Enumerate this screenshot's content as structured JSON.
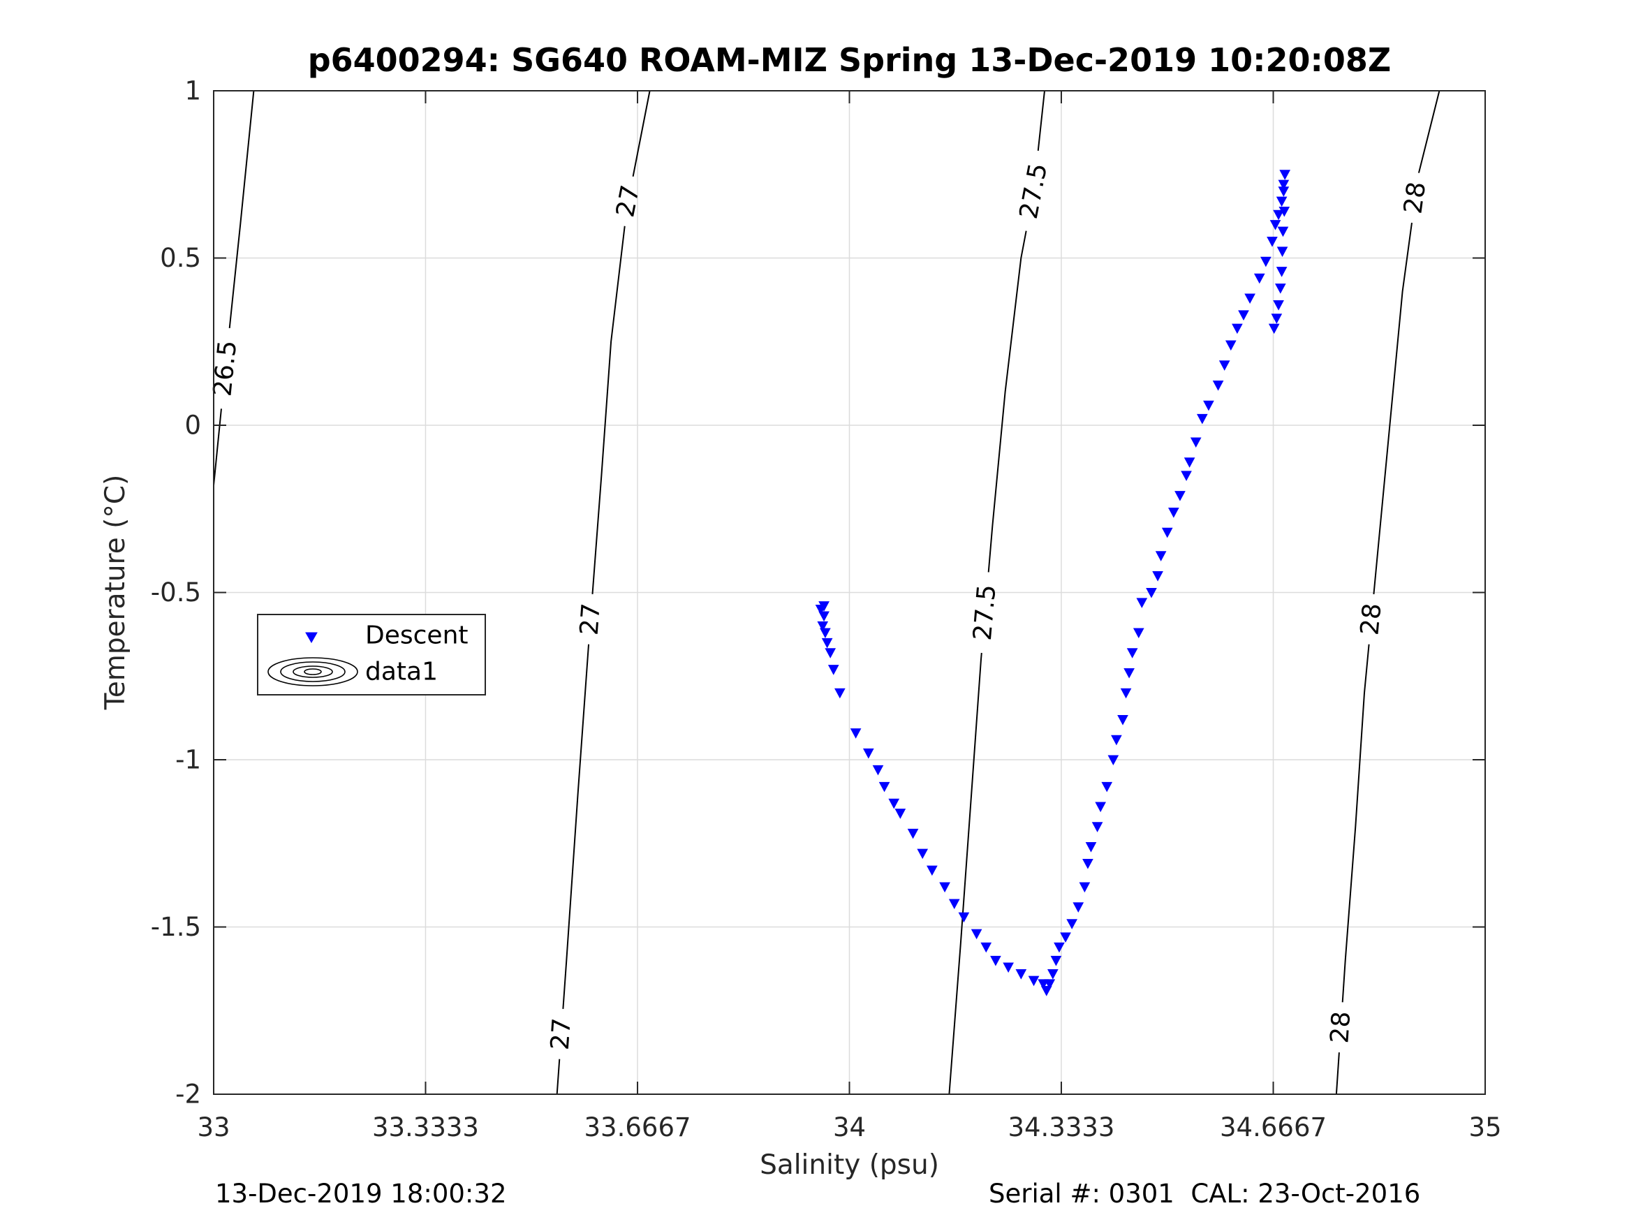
{
  "chart_data": {
    "type": "scatter",
    "title": "p6400294: SG640 ROAM-MIZ Spring 13-Dec-2019 10:20:08Z",
    "xlabel": "Salinity (psu)",
    "ylabel": "Temperature (°C)",
    "xlim": [
      33,
      35
    ],
    "ylim": [
      -2,
      1
    ],
    "x_ticks": [
      33,
      33.3333,
      33.6667,
      34,
      34.3333,
      34.6667,
      35
    ],
    "x_tick_labels": [
      "33",
      "33.3333",
      "33.6667",
      "34",
      "34.3333",
      "34.6667",
      "35"
    ],
    "y_ticks": [
      -2,
      -1.5,
      -1,
      -0.5,
      0,
      0.5,
      1
    ],
    "y_tick_labels": [
      "-2",
      "-1.5",
      "-1",
      "-0.5",
      "0",
      "0.5",
      "1"
    ],
    "grid": true,
    "legend_placement": "middle-left",
    "legend": [
      {
        "label": "Descent",
        "marker": "triangle-down",
        "color": "#0000ff"
      },
      {
        "label": "data1",
        "marker": "contour",
        "color": "#000000"
      }
    ],
    "series": [
      {
        "name": "Descent",
        "marker": "triangle-down",
        "color": "#0000ff",
        "points": [
          [
            33.96,
            -0.54
          ],
          [
            33.955,
            -0.55
          ],
          [
            33.96,
            -0.57
          ],
          [
            33.958,
            -0.6
          ],
          [
            33.962,
            -0.62
          ],
          [
            33.965,
            -0.65
          ],
          [
            33.97,
            -0.68
          ],
          [
            33.975,
            -0.73
          ],
          [
            33.985,
            -0.8
          ],
          [
            34.01,
            -0.92
          ],
          [
            34.03,
            -0.98
          ],
          [
            34.045,
            -1.03
          ],
          [
            34.055,
            -1.08
          ],
          [
            34.07,
            -1.13
          ],
          [
            34.08,
            -1.16
          ],
          [
            34.1,
            -1.22
          ],
          [
            34.115,
            -1.28
          ],
          [
            34.13,
            -1.33
          ],
          [
            34.15,
            -1.38
          ],
          [
            34.165,
            -1.43
          ],
          [
            34.18,
            -1.47
          ],
          [
            34.2,
            -1.52
          ],
          [
            34.215,
            -1.56
          ],
          [
            34.23,
            -1.6
          ],
          [
            34.25,
            -1.62
          ],
          [
            34.27,
            -1.64
          ],
          [
            34.29,
            -1.66
          ],
          [
            34.305,
            -1.67
          ],
          [
            34.31,
            -1.69
          ],
          [
            34.315,
            -1.67
          ],
          [
            34.32,
            -1.64
          ],
          [
            34.325,
            -1.6
          ],
          [
            34.33,
            -1.56
          ],
          [
            34.34,
            -1.53
          ],
          [
            34.35,
            -1.49
          ],
          [
            34.36,
            -1.44
          ],
          [
            34.37,
            -1.38
          ],
          [
            34.375,
            -1.31
          ],
          [
            34.38,
            -1.26
          ],
          [
            34.39,
            -1.2
          ],
          [
            34.395,
            -1.14
          ],
          [
            34.405,
            -1.08
          ],
          [
            34.415,
            -1.0
          ],
          [
            34.42,
            -0.94
          ],
          [
            34.43,
            -0.88
          ],
          [
            34.435,
            -0.8
          ],
          [
            34.44,
            -0.74
          ],
          [
            34.445,
            -0.68
          ],
          [
            34.455,
            -0.62
          ],
          [
            34.46,
            -0.53
          ],
          [
            34.475,
            -0.5
          ],
          [
            34.485,
            -0.45
          ],
          [
            34.49,
            -0.39
          ],
          [
            34.5,
            -0.32
          ],
          [
            34.51,
            -0.26
          ],
          [
            34.52,
            -0.21
          ],
          [
            34.53,
            -0.15
          ],
          [
            34.535,
            -0.11
          ],
          [
            34.545,
            -0.05
          ],
          [
            34.555,
            0.02
          ],
          [
            34.565,
            0.06
          ],
          [
            34.58,
            0.12
          ],
          [
            34.59,
            0.18
          ],
          [
            34.6,
            0.24
          ],
          [
            34.61,
            0.29
          ],
          [
            34.62,
            0.33
          ],
          [
            34.63,
            0.38
          ],
          [
            34.645,
            0.44
          ],
          [
            34.655,
            0.49
          ],
          [
            34.665,
            0.55
          ],
          [
            34.67,
            0.6
          ],
          [
            34.675,
            0.63
          ],
          [
            34.68,
            0.67
          ],
          [
            34.683,
            0.72
          ],
          [
            34.685,
            0.75
          ],
          [
            34.683,
            0.7
          ],
          [
            34.684,
            0.64
          ],
          [
            34.682,
            0.58
          ],
          [
            34.681,
            0.52
          ],
          [
            34.68,
            0.46
          ],
          [
            34.678,
            0.41
          ],
          [
            34.675,
            0.36
          ],
          [
            34.672,
            0.32
          ],
          [
            34.668,
            0.29
          ]
        ]
      }
    ],
    "contours": [
      {
        "label": "26.5",
        "pts": [
          [
            33.0,
            -0.18
          ],
          [
            33.02,
            0.2
          ],
          [
            33.042,
            0.6
          ],
          [
            33.063,
            1.0
          ]
        ],
        "labels_at": [
          0.17
        ]
      },
      {
        "label": "27",
        "pts": [
          [
            33.54,
            -2.0
          ],
          [
            33.555,
            -1.6
          ],
          [
            33.573,
            -1.1
          ],
          [
            33.59,
            -0.65
          ],
          [
            33.61,
            -0.15
          ],
          [
            33.625,
            0.25
          ],
          [
            33.65,
            0.65
          ],
          [
            33.686,
            1.0
          ]
        ],
        "labels_at": [
          -1.82,
          -0.58,
          0.67
        ]
      },
      {
        "label": "27.5",
        "pts": [
          [
            34.157,
            -2.0
          ],
          [
            34.175,
            -1.55
          ],
          [
            34.192,
            -1.1
          ],
          [
            34.207,
            -0.7
          ],
          [
            34.225,
            -0.3
          ],
          [
            34.245,
            0.1
          ],
          [
            34.27,
            0.5
          ],
          [
            34.29,
            0.7
          ],
          [
            34.307,
            1.0
          ]
        ],
        "labels_at": [
          -0.56,
          0.7
        ]
      },
      {
        "label": "28",
        "pts": [
          [
            34.766,
            -2.0
          ],
          [
            34.78,
            -1.6
          ],
          [
            34.796,
            -1.2
          ],
          [
            34.81,
            -0.8
          ],
          [
            34.83,
            -0.4
          ],
          [
            34.85,
            0.0
          ],
          [
            34.87,
            0.4
          ],
          [
            34.895,
            0.75
          ],
          [
            34.928,
            1.0
          ]
        ],
        "labels_at": [
          -1.8,
          -0.58,
          0.68
        ]
      }
    ]
  },
  "footer": {
    "timestamp": "13-Dec-2019 18:00:32",
    "serial_cal": "Serial #: 0301  CAL: 23-Oct-2016"
  }
}
